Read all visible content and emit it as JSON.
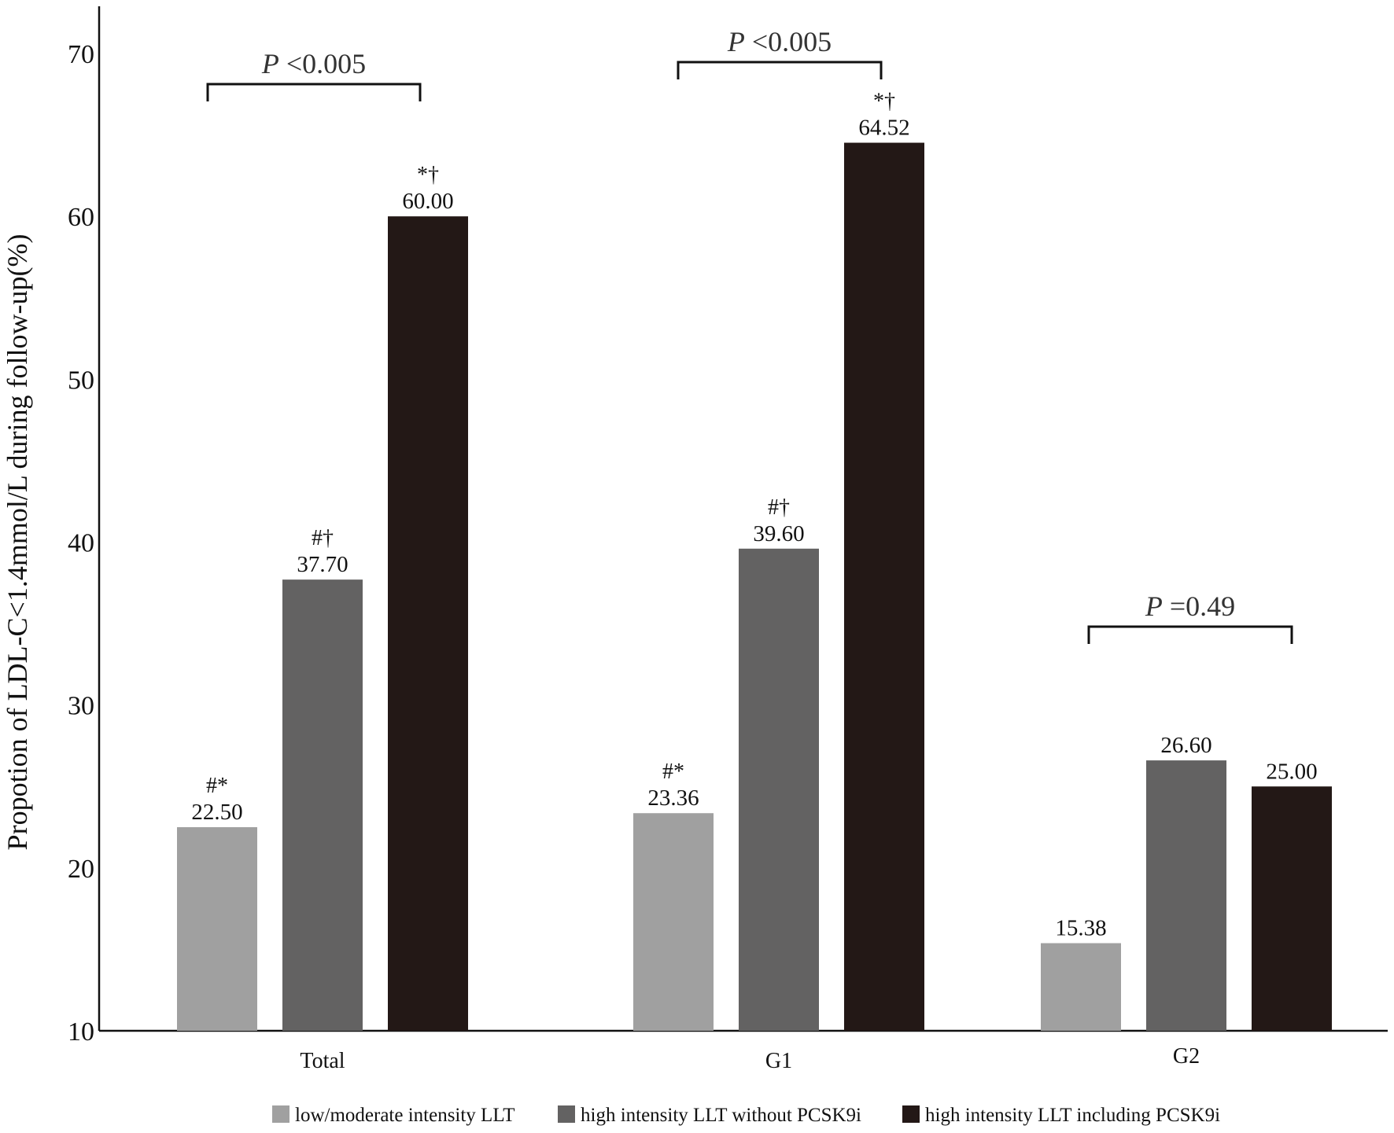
{
  "chart_data": {
    "type": "bar",
    "title": "",
    "xlabel": "",
    "ylabel": "Propotion of LDL-C<1.4mmol/L during follow-up(%)",
    "ylim": [
      10,
      72
    ],
    "yticks": [
      10,
      20,
      30,
      40,
      50,
      60,
      70
    ],
    "categories": [
      "Total",
      "G1",
      "G2"
    ],
    "series": [
      {
        "name": "low/moderate intensity LLT",
        "color": "#a0a0a0",
        "values": [
          22.5,
          23.36,
          15.38
        ],
        "value_labels": [
          "22.50",
          "23.36",
          "15.38"
        ],
        "marks": [
          "#*",
          "#*",
          ""
        ]
      },
      {
        "name": "high intensity LLT without PCSK9i",
        "color": "#636262",
        "values": [
          37.7,
          39.6,
          26.6
        ],
        "value_labels": [
          "37.70",
          "39.60",
          "26.60"
        ],
        "marks": [
          "#†",
          "#†",
          ""
        ]
      },
      {
        "name": "high intensity LLT including  PCSK9i",
        "color": "#231816",
        "values": [
          60.0,
          64.52,
          25.0
        ],
        "value_labels": [
          "60.00",
          "64.52",
          "25.00"
        ],
        "marks": [
          "*†",
          "*†",
          ""
        ]
      }
    ],
    "significance": [
      {
        "category": "Total",
        "label_italic": "P",
        "label_rest": " <0.005"
      },
      {
        "category": "G1",
        "label_italic": "P",
        "label_rest": " <0.005"
      },
      {
        "category": "G2",
        "label_italic": "P",
        "label_rest": " =0.49"
      }
    ],
    "legend_position": "bottom"
  }
}
